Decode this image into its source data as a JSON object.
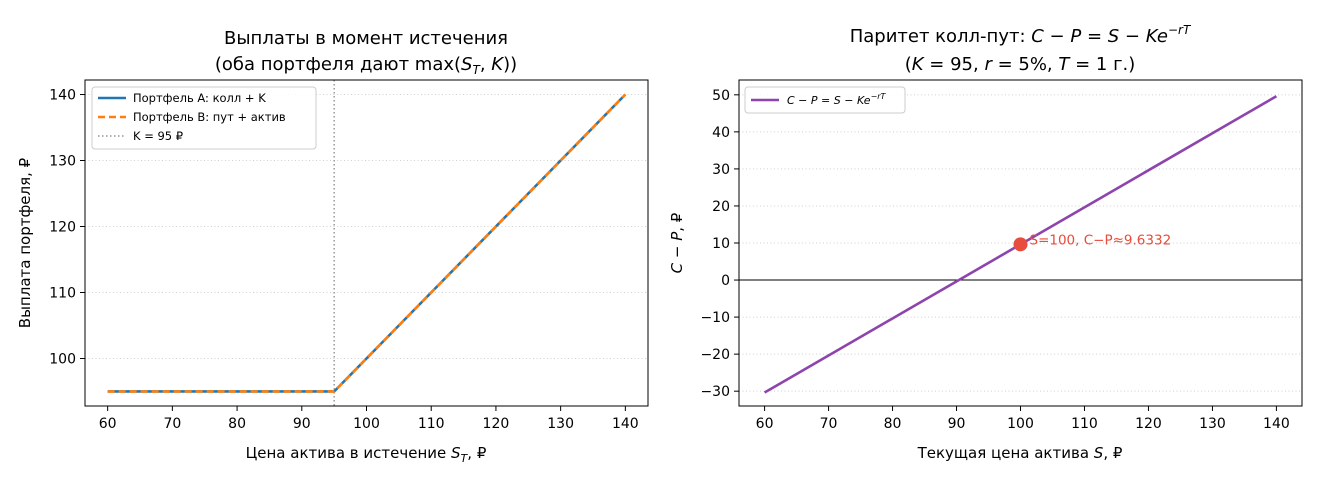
{
  "chart_data": [
    {
      "type": "line",
      "title_line1": "Выплаты в момент истечения",
      "title_line2": "(оба портфеля дают max(S_T, K))",
      "xlabel": "Цена актива в истечение S_T, ₽",
      "ylabel": "Выплата портфеля, ₽",
      "xlim": [
        56.5,
        143.5
      ],
      "ylim": [
        92.8,
        142.2
      ],
      "xticks": [
        60,
        70,
        80,
        90,
        100,
        110,
        120,
        130,
        140
      ],
      "yticks": [
        100,
        110,
        120,
        130,
        140
      ],
      "grid": "y-dotted",
      "legend_position": "top-left",
      "series": [
        {
          "name": "Портфель A: колл + K",
          "x": [
            60,
            95,
            140
          ],
          "y": [
            95,
            95,
            140
          ],
          "color": "#1f77b4",
          "style": "solid"
        },
        {
          "name": "Портфель B: пут + актив",
          "x": [
            60,
            95,
            140
          ],
          "y": [
            95,
            95,
            140
          ],
          "color": "#ff7f0e",
          "style": "dashed"
        }
      ],
      "vline": {
        "name": "K = 95 ₽",
        "x": 95,
        "color": "#808080",
        "style": "dotted"
      }
    },
    {
      "type": "line",
      "title_line1": "Паритет колл-пут: C − P = S − Ke^{−rT}",
      "title_line2": "(K = 95, r = 5%, T = 1 г.)",
      "xlabel": "Текущая цена актива S, ₽",
      "ylabel": "C − P, ₽",
      "xlim": [
        56,
        144
      ],
      "ylim": [
        -34,
        54
      ],
      "xticks": [
        60,
        70,
        80,
        90,
        100,
        110,
        120,
        130,
        140
      ],
      "yticks": [
        -30,
        -20,
        -10,
        0,
        10,
        20,
        30,
        40,
        50
      ],
      "grid": "y-dotted",
      "legend_position": "top-left",
      "series": [
        {
          "name": "C − P = S − Ke^{−rT}",
          "x": [
            60,
            140
          ],
          "y": [
            -30.37,
            49.63
          ],
          "color": "#8e44ad",
          "style": "solid"
        }
      ],
      "hline": {
        "y": 0,
        "color": "#000000"
      },
      "point": {
        "x": 100,
        "y": 9.6332,
        "label": "S=100, C−P≈9.6332",
        "color": "#e74c3c"
      }
    }
  ]
}
